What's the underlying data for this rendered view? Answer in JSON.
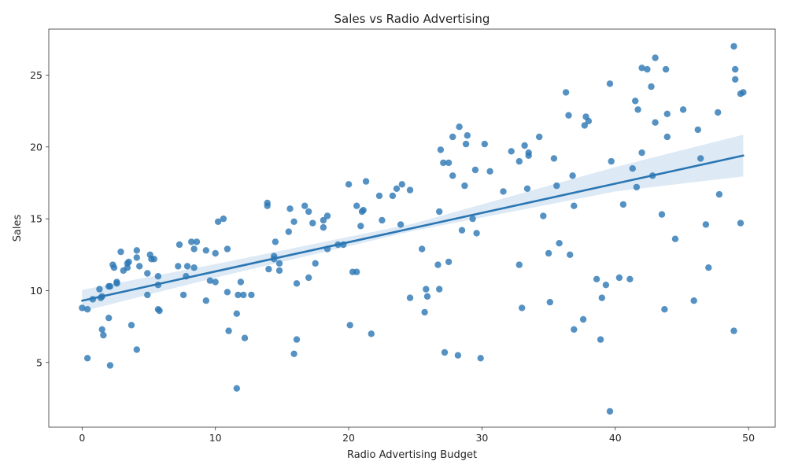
{
  "chart_data": {
    "type": "scatter",
    "title": "Sales vs Radio Advertising",
    "xlabel": "Radio Advertising Budget",
    "ylabel": "Sales",
    "xlim": [
      -2.5,
      52.0
    ],
    "ylim": [
      0.5,
      28.2
    ],
    "xticks": [
      0,
      10,
      20,
      30,
      40,
      50
    ],
    "yticks": [
      5,
      10,
      15,
      20,
      25
    ],
    "grid": false,
    "legend": "none",
    "colors": {
      "points": "#2b77b4",
      "line": "#2a76b2",
      "band": "#c6dbef"
    },
    "points": [
      [
        0.0,
        8.8
      ],
      [
        0.4,
        8.7
      ],
      [
        0.8,
        9.4
      ],
      [
        0.4,
        5.3
      ],
      [
        1.3,
        10.1
      ],
      [
        1.5,
        9.6
      ],
      [
        1.4,
        9.5
      ],
      [
        1.6,
        6.9
      ],
      [
        1.5,
        7.3
      ],
      [
        2.0,
        10.3
      ],
      [
        2.1,
        10.3
      ],
      [
        2.0,
        8.1
      ],
      [
        2.1,
        4.8
      ],
      [
        2.3,
        11.8
      ],
      [
        2.4,
        11.6
      ],
      [
        2.6,
        10.6
      ],
      [
        2.6,
        10.5
      ],
      [
        2.9,
        12.7
      ],
      [
        3.1,
        11.4
      ],
      [
        3.4,
        11.9
      ],
      [
        3.5,
        12.0
      ],
      [
        3.4,
        11.6
      ],
      [
        3.7,
        7.6
      ],
      [
        4.1,
        12.8
      ],
      [
        4.1,
        12.3
      ],
      [
        4.1,
        5.9
      ],
      [
        4.3,
        11.7
      ],
      [
        4.9,
        11.2
      ],
      [
        5.1,
        12.5
      ],
      [
        5.2,
        12.2
      ],
      [
        5.4,
        12.2
      ],
      [
        4.9,
        9.7
      ],
      [
        5.7,
        11.0
      ],
      [
        5.7,
        10.4
      ],
      [
        5.7,
        8.7
      ],
      [
        5.8,
        8.6
      ],
      [
        7.2,
        11.7
      ],
      [
        7.3,
        13.2
      ],
      [
        7.6,
        9.7
      ],
      [
        7.8,
        11.0
      ],
      [
        7.9,
        11.7
      ],
      [
        8.2,
        13.4
      ],
      [
        8.4,
        12.9
      ],
      [
        8.4,
        11.6
      ],
      [
        8.6,
        13.4
      ],
      [
        9.3,
        12.8
      ],
      [
        9.6,
        10.7
      ],
      [
        9.3,
        9.3
      ],
      [
        10.0,
        10.6
      ],
      [
        10.0,
        12.6
      ],
      [
        10.2,
        14.8
      ],
      [
        10.6,
        15.0
      ],
      [
        10.9,
        12.9
      ],
      [
        10.9,
        9.9
      ],
      [
        11.0,
        7.2
      ],
      [
        11.6,
        8.4
      ],
      [
        11.7,
        9.7
      ],
      [
        11.9,
        10.6
      ],
      [
        12.1,
        9.7
      ],
      [
        12.7,
        9.7
      ],
      [
        12.2,
        6.7
      ],
      [
        11.6,
        3.2
      ],
      [
        13.9,
        16.1
      ],
      [
        13.9,
        15.9
      ],
      [
        14.0,
        11.5
      ],
      [
        14.4,
        12.4
      ],
      [
        14.4,
        12.2
      ],
      [
        14.5,
        13.4
      ],
      [
        14.8,
        11.9
      ],
      [
        14.8,
        11.4
      ],
      [
        15.5,
        14.1
      ],
      [
        15.6,
        15.7
      ],
      [
        15.9,
        14.8
      ],
      [
        16.1,
        10.5
      ],
      [
        16.1,
        6.6
      ],
      [
        15.9,
        5.6
      ],
      [
        16.7,
        15.9
      ],
      [
        17.0,
        15.5
      ],
      [
        17.3,
        14.7
      ],
      [
        17.5,
        11.9
      ],
      [
        17.0,
        10.9
      ],
      [
        18.1,
        14.9
      ],
      [
        18.1,
        14.4
      ],
      [
        18.4,
        15.2
      ],
      [
        18.4,
        12.9
      ],
      [
        19.2,
        13.2
      ],
      [
        19.6,
        13.2
      ],
      [
        20.0,
        17.4
      ],
      [
        20.3,
        11.3
      ],
      [
        20.6,
        11.3
      ],
      [
        20.1,
        7.6
      ],
      [
        20.6,
        15.9
      ],
      [
        20.9,
        14.5
      ],
      [
        21.0,
        15.5
      ],
      [
        21.1,
        15.6
      ],
      [
        21.3,
        17.6
      ],
      [
        21.7,
        7.0
      ],
      [
        22.3,
        16.6
      ],
      [
        22.5,
        14.9
      ],
      [
        23.3,
        16.6
      ],
      [
        23.6,
        17.1
      ],
      [
        23.9,
        14.6
      ],
      [
        24.0,
        17.4
      ],
      [
        24.6,
        17.0
      ],
      [
        24.6,
        9.5
      ],
      [
        25.5,
        12.9
      ],
      [
        25.7,
        8.5
      ],
      [
        25.8,
        10.1
      ],
      [
        25.9,
        9.6
      ],
      [
        26.7,
        11.8
      ],
      [
        26.8,
        10.1
      ],
      [
        26.8,
        15.5
      ],
      [
        26.9,
        19.8
      ],
      [
        27.1,
        18.9
      ],
      [
        27.5,
        18.9
      ],
      [
        27.5,
        12.0
      ],
      [
        27.2,
        5.7
      ],
      [
        27.8,
        20.7
      ],
      [
        27.8,
        18.0
      ],
      [
        28.2,
        5.5
      ],
      [
        28.3,
        21.4
      ],
      [
        28.5,
        14.2
      ],
      [
        28.7,
        17.3
      ],
      [
        28.8,
        20.2
      ],
      [
        28.9,
        20.8
      ],
      [
        29.3,
        15.0
      ],
      [
        29.5,
        18.4
      ],
      [
        29.6,
        14.0
      ],
      [
        29.9,
        5.3
      ],
      [
        30.2,
        20.2
      ],
      [
        30.6,
        18.3
      ],
      [
        31.6,
        16.9
      ],
      [
        32.2,
        19.7
      ],
      [
        32.8,
        11.8
      ],
      [
        32.8,
        19.0
      ],
      [
        33.0,
        8.8
      ],
      [
        33.2,
        20.1
      ],
      [
        33.4,
        17.1
      ],
      [
        33.5,
        19.6
      ],
      [
        33.5,
        19.4
      ],
      [
        34.3,
        20.7
      ],
      [
        34.6,
        15.2
      ],
      [
        35.0,
        12.6
      ],
      [
        35.1,
        9.2
      ],
      [
        35.4,
        19.2
      ],
      [
        35.6,
        17.3
      ],
      [
        35.8,
        13.3
      ],
      [
        36.3,
        23.8
      ],
      [
        36.5,
        22.2
      ],
      [
        36.6,
        12.5
      ],
      [
        36.8,
        18.0
      ],
      [
        36.9,
        15.9
      ],
      [
        36.9,
        7.3
      ],
      [
        37.6,
        8.0
      ],
      [
        37.7,
        21.5
      ],
      [
        37.8,
        22.1
      ],
      [
        38.0,
        21.8
      ],
      [
        38.6,
        10.8
      ],
      [
        38.9,
        6.6
      ],
      [
        39.0,
        9.5
      ],
      [
        39.3,
        10.4
      ],
      [
        39.6,
        24.4
      ],
      [
        39.7,
        19.0
      ],
      [
        39.6,
        1.6
      ],
      [
        40.3,
        10.9
      ],
      [
        40.6,
        16.0
      ],
      [
        41.1,
        10.8
      ],
      [
        41.3,
        18.5
      ],
      [
        41.5,
        23.2
      ],
      [
        41.6,
        17.2
      ],
      [
        41.7,
        22.6
      ],
      [
        42.0,
        25.5
      ],
      [
        42.0,
        19.6
      ],
      [
        42.4,
        25.4
      ],
      [
        42.7,
        24.2
      ],
      [
        42.8,
        18.0
      ],
      [
        43.0,
        21.7
      ],
      [
        43.0,
        26.2
      ],
      [
        43.5,
        15.3
      ],
      [
        43.7,
        8.7
      ],
      [
        43.8,
        25.4
      ],
      [
        43.9,
        22.3
      ],
      [
        43.9,
        20.7
      ],
      [
        44.5,
        13.6
      ],
      [
        45.1,
        22.6
      ],
      [
        45.9,
        9.3
      ],
      [
        46.2,
        21.2
      ],
      [
        46.4,
        19.2
      ],
      [
        46.8,
        14.6
      ],
      [
        47.0,
        11.6
      ],
      [
        47.7,
        22.4
      ],
      [
        47.8,
        16.7
      ],
      [
        48.9,
        27.0
      ],
      [
        49.0,
        25.4
      ],
      [
        49.0,
        24.7
      ],
      [
        48.9,
        7.2
      ],
      [
        49.4,
        23.7
      ],
      [
        49.4,
        14.7
      ],
      [
        49.6,
        23.8
      ]
    ],
    "regression": {
      "x_range": [
        0.0,
        49.6
      ],
      "y_start": 9.3,
      "y_end": 19.4,
      "band_lower": [
        [
          0.0,
          8.55
        ],
        [
          10.0,
          10.9
        ],
        [
          24.8,
          14.15
        ],
        [
          40.0,
          16.9
        ],
        [
          49.6,
          17.95
        ]
      ],
      "band_upper": [
        [
          0.0,
          10.05
        ],
        [
          10.0,
          11.85
        ],
        [
          24.8,
          14.65
        ],
        [
          40.0,
          18.6
        ],
        [
          49.6,
          20.85
        ]
      ]
    }
  }
}
